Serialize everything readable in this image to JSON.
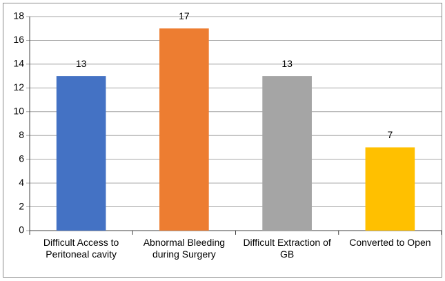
{
  "chart_data": {
    "type": "bar",
    "categories": [
      "Difficult Access to Peritoneal cavity",
      "Abnormal Bleeding during Surgery",
      "Difficult Extraction of GB",
      "Converted to Open"
    ],
    "values": [
      13,
      17,
      13,
      7
    ],
    "colors": [
      "#4472c4",
      "#ed7d31",
      "#a5a5a5",
      "#ffc000"
    ],
    "ylim": [
      0,
      18
    ],
    "yticks": [
      0,
      2,
      4,
      6,
      8,
      10,
      12,
      14,
      16,
      18
    ],
    "grid": true
  }
}
